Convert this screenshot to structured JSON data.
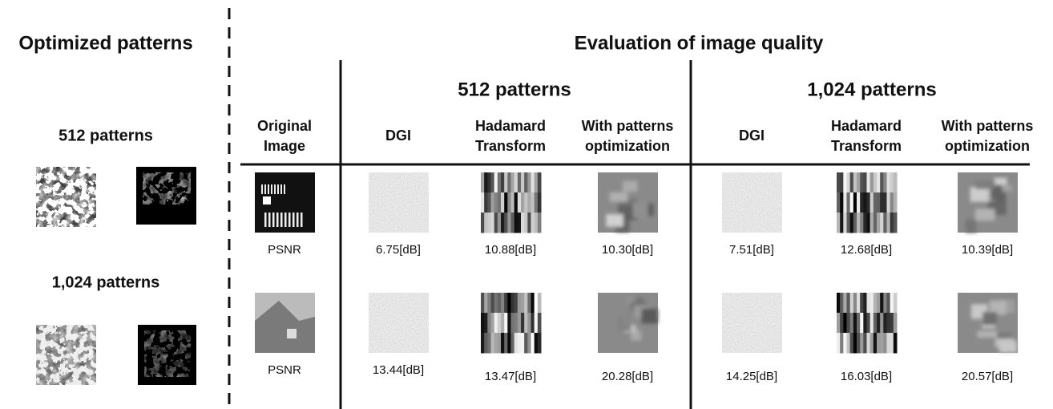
{
  "left": {
    "title": "Optimized patterns",
    "groups": [
      "512 patterns",
      "1,024 patterns"
    ]
  },
  "right": {
    "title": "Evaluation of image quality",
    "groups": [
      "512 patterns",
      "1,024 patterns"
    ],
    "columns": [
      [
        "Original",
        "Image"
      ],
      [
        "DGI"
      ],
      [
        "Hadamard",
        "Transform"
      ],
      [
        "With patterns",
        "optimization"
      ],
      [
        "DGI"
      ],
      [
        "Hadamard",
        "Transform"
      ],
      [
        "With patterns",
        "optimization"
      ]
    ],
    "rows": [
      [
        "PSNR",
        "6.75[dB]",
        "10.88[dB]",
        "10.30[dB]",
        "7.51[dB]",
        "12.68[dB]",
        "10.39[dB]"
      ],
      [
        "PSNR",
        "13.44[dB]",
        "13.47[dB]",
        "20.28[dB]",
        "14.25[dB]",
        "16.03[dB]",
        "20.57[dB]"
      ]
    ]
  }
}
